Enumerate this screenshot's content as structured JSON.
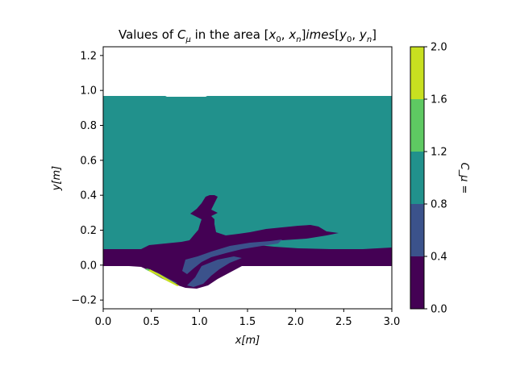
{
  "chart_data": {
    "type": "contour",
    "title": "Values of C_μ in the area [x_0, x_n]imes[y_0, y_n]",
    "xlabel": "x[m]",
    "ylabel": "y[m]",
    "colorbar_label": "C_μ =",
    "xlim": [
      0.0,
      3.0
    ],
    "ylim": [
      -0.25,
      1.25
    ],
    "xticks": [
      "0.0",
      "0.5",
      "1.0",
      "1.5",
      "2.0",
      "2.5",
      "3.0"
    ],
    "yticks": [
      "−0.2",
      "0.0",
      "0.2",
      "0.4",
      "0.6",
      "0.8",
      "1.0",
      "1.2"
    ],
    "colorbar_ticks": [
      "0.0",
      "0.4",
      "0.8",
      "1.2",
      "1.6",
      "2.0"
    ],
    "levels": [
      {
        "range": [
          0.0,
          0.4
        ],
        "color": "#440154"
      },
      {
        "range": [
          0.4,
          0.8
        ],
        "color": "#3b528b"
      },
      {
        "range": [
          0.8,
          1.2
        ],
        "color": "#21918c"
      },
      {
        "range": [
          1.2,
          1.6
        ],
        "color": "#5ec962"
      },
      {
        "range": [
          1.6,
          2.0
        ],
        "color": "#c8e020"
      }
    ],
    "regions": [
      {
        "level": "0.8-1.2",
        "description": "bulk domain",
        "x": [
          0.0,
          3.0
        ],
        "y": [
          0.0,
          0.97
        ]
      },
      {
        "level": "0.0-0.4",
        "description": "wake / shear layer and bottom boundary layer",
        "x": [
          0.0,
          3.0
        ],
        "y": [
          -0.13,
          0.4
        ]
      },
      {
        "level": "0.4-0.8",
        "description": "thin band inside shear layer",
        "x": [
          0.5,
          1.9
        ],
        "y": [
          -0.12,
          0.15
        ]
      },
      {
        "level": "1.6-2.0",
        "description": "thin streak near bump bottom",
        "x": [
          0.55,
          0.85
        ],
        "y": [
          -0.12,
          -0.06
        ]
      }
    ]
  }
}
